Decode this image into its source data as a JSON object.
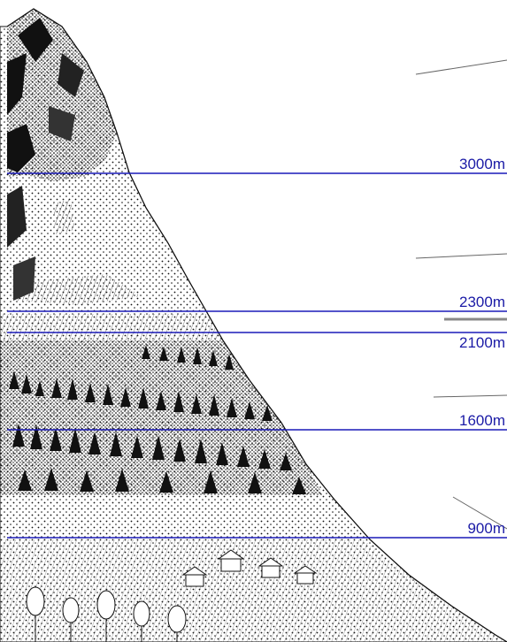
{
  "diagram": {
    "labels": {
      "m3000": "3000m",
      "m2300": "2300m",
      "m2100": "2100m",
      "m1600": "1600m",
      "m900": "900m"
    },
    "colors": {
      "altitude_line": "#1a1ab8",
      "label_text": "#1a1aa6",
      "ink": "#111111",
      "guide_line": "#666666"
    }
  }
}
